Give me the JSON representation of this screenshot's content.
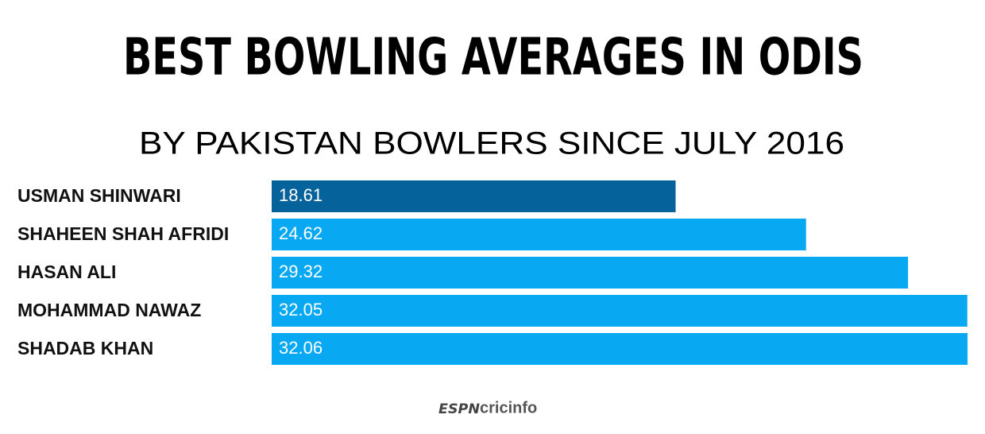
{
  "chart_data": {
    "type": "bar",
    "orientation": "horizontal",
    "title": "BEST BOWLING AVERAGES IN ODIS",
    "subtitle": "BY PAKISTAN BOWLERS SINCE JULY 2016",
    "categories": [
      "USMAN SHINWARI",
      "SHAHEEN SHAH AFRIDI",
      "HASAN ALI",
      "MOHAMMAD NAWAZ",
      "SHADAB KHAN"
    ],
    "values": [
      18.61,
      24.62,
      29.32,
      32.05,
      32.06
    ],
    "colors": [
      "#05629a",
      "#08a8f2",
      "#08a8f2",
      "#08a8f2",
      "#08a8f2"
    ],
    "footer": [
      "ESPN",
      "cricinfo"
    ]
  }
}
